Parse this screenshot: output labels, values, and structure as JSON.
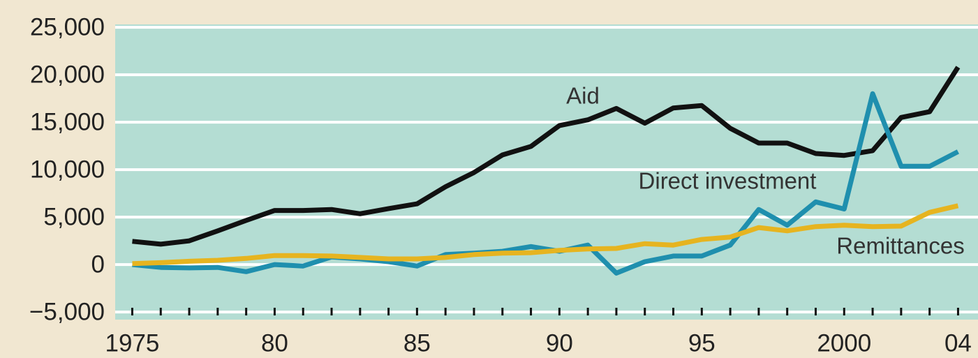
{
  "chart_data": {
    "type": "line",
    "x": [
      1975,
      1976,
      1977,
      1978,
      1979,
      1980,
      1981,
      1982,
      1983,
      1984,
      1985,
      1986,
      1987,
      1988,
      1989,
      1990,
      1991,
      1992,
      1993,
      1994,
      1995,
      1996,
      1997,
      1998,
      1999,
      2000,
      2001,
      2002,
      2003,
      2004
    ],
    "series": [
      {
        "name": "Aid",
        "color": "#111111",
        "values": [
          2450,
          2150,
          2500,
          3550,
          4650,
          5700,
          5700,
          5800,
          5350,
          5900,
          6400,
          8200,
          9700,
          11550,
          12450,
          14650,
          15250,
          16450,
          14900,
          16500,
          16750,
          14350,
          12800,
          12800,
          11700,
          11500,
          12000,
          15500,
          16100,
          20800
        ]
      },
      {
        "name": "Direct investment",
        "color": "#1f8fae",
        "values": [
          0,
          -300,
          -350,
          -300,
          -750,
          0,
          -150,
          800,
          600,
          300,
          -150,
          1050,
          1200,
          1400,
          1900,
          1400,
          2050,
          -900,
          300,
          900,
          900,
          2050,
          5800,
          4150,
          6600,
          5850,
          18000,
          10350,
          10350,
          11900
        ]
      },
      {
        "name": "Remittances",
        "color": "#e6b420",
        "values": [
          100,
          200,
          350,
          450,
          650,
          950,
          950,
          900,
          750,
          600,
          600,
          750,
          1050,
          1200,
          1250,
          1500,
          1650,
          1700,
          2200,
          2050,
          2650,
          2900,
          3900,
          3550,
          4000,
          4150,
          4000,
          4050,
          5500,
          6200
        ]
      }
    ],
    "xlim": [
      1974.4,
      2004.7
    ],
    "xticks": [
      {
        "value": 1975,
        "label": "1975"
      },
      {
        "value": 1980,
        "label": "80"
      },
      {
        "value": 1985,
        "label": "85"
      },
      {
        "value": 1990,
        "label": "90"
      },
      {
        "value": 1995,
        "label": "95"
      },
      {
        "value": 2000,
        "label": "2000"
      },
      {
        "value": 2004,
        "label": "04"
      }
    ],
    "ylim": [
      -5800,
      25300
    ],
    "yticks": [
      {
        "value": -5000,
        "label": "−5,000"
      },
      0,
      {
        "value": 5000,
        "label": "5,000"
      },
      {
        "value": 10000,
        "label": "10,000"
      },
      {
        "value": 15000,
        "label": "15,000"
      },
      {
        "value": 20000,
        "label": "20,000"
      },
      {
        "value": 25000,
        "label": "25,000"
      }
    ],
    "grid": true
  }
}
